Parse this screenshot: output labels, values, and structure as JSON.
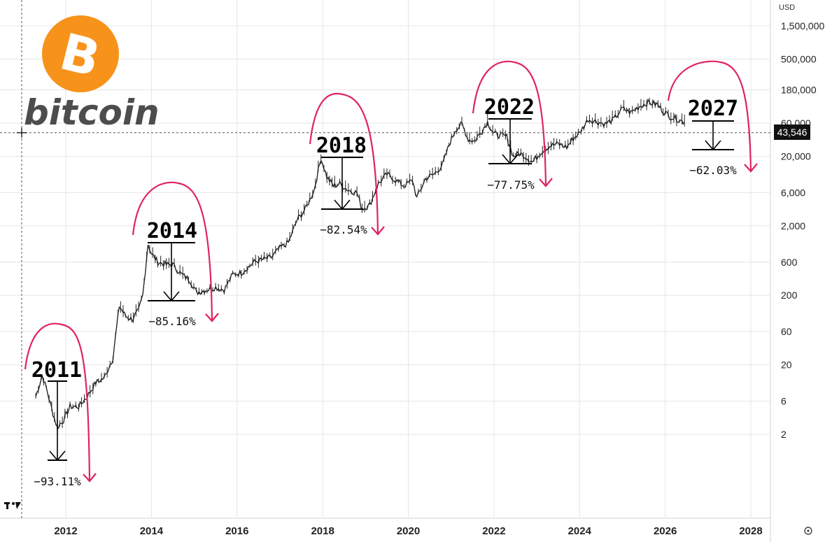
{
  "brand": {
    "name": "bitcoin",
    "logo_symbol": "B",
    "logo_color": "#F7931A",
    "accent_color": "#E0245E"
  },
  "current_price": {
    "label": "43,546",
    "value": 43546
  },
  "chart_data": {
    "type": "line",
    "ylog": true,
    "unit": "USD",
    "yticks": [
      {
        "label": "1,500,000",
        "v": 1500000
      },
      {
        "label": "500,000",
        "v": 500000
      },
      {
        "label": "180,000",
        "v": 180000
      },
      {
        "label": "60,000",
        "v": 60000
      },
      {
        "label": "20,000",
        "v": 20000
      },
      {
        "label": "6,000",
        "v": 6000
      },
      {
        "label": "2,000",
        "v": 2000
      },
      {
        "label": "600",
        "v": 600
      },
      {
        "label": "200",
        "v": 200
      },
      {
        "label": "60",
        "v": 60
      },
      {
        "label": "20",
        "v": 20
      },
      {
        "label": "6",
        "v": 6
      },
      {
        "label": "2",
        "v": 2
      }
    ],
    "xticks": [
      "2012",
      "2014",
      "2016",
      "2018",
      "2020",
      "2022",
      "2024",
      "2026",
      "2028"
    ],
    "grid": true,
    "series": [
      {
        "points": [
          [
            2011.3,
            7
          ],
          [
            2011.45,
            14
          ],
          [
            2011.55,
            9
          ],
          [
            2011.7,
            4
          ],
          [
            2011.8,
            2.5
          ],
          [
            2011.95,
            3.2
          ],
          [
            2012.1,
            5
          ],
          [
            2012.3,
            5
          ],
          [
            2012.5,
            7
          ],
          [
            2012.7,
            11
          ],
          [
            2012.9,
            13
          ],
          [
            2013.1,
            25
          ],
          [
            2013.25,
            140
          ],
          [
            2013.4,
            100
          ],
          [
            2013.55,
            90
          ],
          [
            2013.7,
            120
          ],
          [
            2013.8,
            200
          ],
          [
            2013.92,
            1100
          ],
          [
            2014.0,
            800
          ],
          [
            2014.15,
            600
          ],
          [
            2014.35,
            550
          ],
          [
            2014.5,
            550
          ],
          [
            2014.7,
            400
          ],
          [
            2014.9,
            330
          ],
          [
            2015.05,
            220
          ],
          [
            2015.3,
            240
          ],
          [
            2015.5,
            260
          ],
          [
            2015.7,
            240
          ],
          [
            2015.9,
            400
          ],
          [
            2016.1,
            420
          ],
          [
            2016.4,
            600
          ],
          [
            2016.6,
            650
          ],
          [
            2016.8,
            700
          ],
          [
            2017.0,
            950
          ],
          [
            2017.2,
            1150
          ],
          [
            2017.4,
            2400
          ],
          [
            2017.6,
            3500
          ],
          [
            2017.8,
            6500
          ],
          [
            2017.96,
            19000
          ],
          [
            2018.1,
            10000
          ],
          [
            2018.25,
            7500
          ],
          [
            2018.4,
            8000
          ],
          [
            2018.6,
            6500
          ],
          [
            2018.8,
            6000
          ],
          [
            2018.92,
            3500
          ],
          [
            2019.1,
            4000
          ],
          [
            2019.3,
            8000
          ],
          [
            2019.5,
            11000
          ],
          [
            2019.7,
            9000
          ],
          [
            2019.9,
            7500
          ],
          [
            2020.1,
            9000
          ],
          [
            2020.2,
            5000
          ],
          [
            2020.4,
            9500
          ],
          [
            2020.6,
            11000
          ],
          [
            2020.8,
            15000
          ],
          [
            2020.95,
            29000
          ],
          [
            2021.1,
            48000
          ],
          [
            2021.25,
            58000
          ],
          [
            2021.4,
            35000
          ],
          [
            2021.55,
            33000
          ],
          [
            2021.7,
            45000
          ],
          [
            2021.85,
            62000
          ],
          [
            2022.0,
            42000
          ],
          [
            2022.15,
            40000
          ],
          [
            2022.3,
            38000
          ],
          [
            2022.45,
            20000
          ],
          [
            2022.6,
            22000
          ],
          [
            2022.75,
            19500
          ],
          [
            2022.9,
            16500
          ],
          [
            2023.1,
            23000
          ],
          [
            2023.3,
            28000
          ],
          [
            2023.5,
            30000
          ],
          [
            2023.7,
            27000
          ],
          [
            2023.85,
            36000
          ],
          [
            2024.0,
            43000
          ],
          [
            2024.2,
            68000
          ],
          [
            2024.4,
            63000
          ],
          [
            2024.6,
            58000
          ],
          [
            2024.8,
            68000
          ],
          [
            2025.0,
            97000
          ],
          [
            2025.2,
            85000
          ],
          [
            2025.4,
            105000
          ],
          [
            2025.6,
            118000
          ],
          [
            2025.8,
            112000
          ],
          [
            2025.95,
            90000
          ],
          [
            2026.1,
            75000
          ],
          [
            2026.3,
            68000
          ],
          [
            2026.45,
            62000
          ]
        ]
      }
    ],
    "cycles": [
      {
        "year_label": "2011",
        "drawdown": "−93.11%"
      },
      {
        "year_label": "2014",
        "drawdown": "−85.16%"
      },
      {
        "year_label": "2018",
        "drawdown": "−82.54%"
      },
      {
        "year_label": "2022",
        "drawdown": "−77.75%"
      },
      {
        "year_label": "2027",
        "drawdown": "−62.03%"
      }
    ]
  }
}
